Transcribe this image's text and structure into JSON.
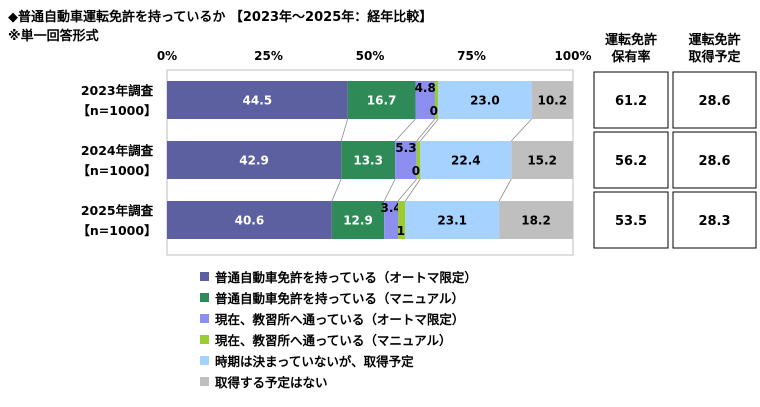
{
  "title": "◆普通自動車運転免許を持っているか 【2023年～2025年：経年比較】",
  "subtitle": "※単一回答形式",
  "chart_data": {
    "type": "bar",
    "orientation": "horizontal",
    "stacked": true,
    "x_ticks": [
      "0%",
      "25%",
      "50%",
      "75%",
      "100%"
    ],
    "xlim": [
      0,
      100
    ],
    "categories": [
      {
        "line1": "2023年調査",
        "line2": "【n=1000】"
      },
      {
        "line1": "2024年調査",
        "line2": "【n=1000】"
      },
      {
        "line1": "2025年調査",
        "line2": "【n=1000】"
      }
    ],
    "series": [
      {
        "name": "普通自動車免許を持っている（オートマ限定）",
        "color": "#5c5fa0",
        "label_color": "#ffffff",
        "values": [
          44.5,
          42.9,
          40.6
        ]
      },
      {
        "name": "普通自動車免許を持っている（マニュアル）",
        "color": "#2e8b57",
        "label_color": "#ffffff",
        "values": [
          16.7,
          13.3,
          12.9
        ]
      },
      {
        "name": "現在、教習所へ通っている（オートマ限定）",
        "color": "#8c8ff0",
        "label_color": "#000000",
        "values": [
          4.8,
          5.3,
          3.4
        ]
      },
      {
        "name": "現在、教習所へ通っている（マニュアル）",
        "color": "#9acd32",
        "label_color": "#000000",
        "values": [
          0.8,
          0.9,
          1.8
        ]
      },
      {
        "name": "時期は決まっていないが、取得予定",
        "color": "#a6d2ff",
        "label_color": "#000000",
        "values": [
          23.0,
          22.4,
          23.1
        ]
      },
      {
        "name": "取得する予定はない",
        "color": "#bfbfbf",
        "label_color": "#000000",
        "values": [
          10.2,
          15.2,
          18.2
        ]
      }
    ],
    "side_table": {
      "columns": [
        {
          "header_line1": "運転免許",
          "header_line2": "保有率",
          "values": [
            "61.2",
            "56.2",
            "53.5"
          ]
        },
        {
          "header_line1": "運転免許",
          "header_line2": "取得予定",
          "values": [
            "28.6",
            "28.6",
            "28.3"
          ]
        }
      ]
    },
    "grid": false,
    "legend_position": "bottom"
  }
}
